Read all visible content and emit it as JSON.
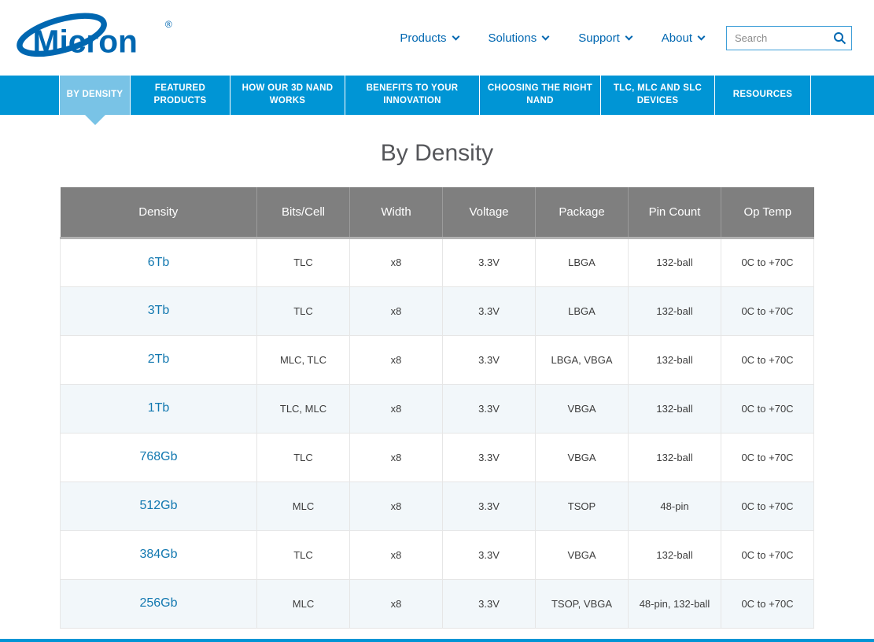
{
  "header": {
    "logo_text": "Micron",
    "logo_reg": "®",
    "nav": [
      {
        "label": "Products"
      },
      {
        "label": "Solutions"
      },
      {
        "label": "Support"
      },
      {
        "label": "About"
      }
    ],
    "search_placeholder": "Search"
  },
  "tabs": [
    {
      "label": "BY DENSITY",
      "active": true
    },
    {
      "label": "FEATURED PRODUCTS",
      "active": false
    },
    {
      "label": "HOW OUR 3D NAND WORKS",
      "active": false
    },
    {
      "label": "BENEFITS TO YOUR INNOVATION",
      "active": false
    },
    {
      "label": "CHOOSING THE RIGHT NAND",
      "active": false
    },
    {
      "label": "TLC, MLC AND SLC DEVICES",
      "active": false
    },
    {
      "label": "RESOURCES",
      "active": false
    }
  ],
  "page_title": "By Density",
  "table": {
    "columns": [
      "Density",
      "Bits/Cell",
      "Width",
      "Voltage",
      "Package",
      "Pin Count",
      "Op Temp"
    ],
    "rows": [
      [
        "6Tb",
        "TLC",
        "x8",
        "3.3V",
        "LBGA",
        "132-ball",
        "0C to +70C"
      ],
      [
        "3Tb",
        "TLC",
        "x8",
        "3.3V",
        "LBGA",
        "132-ball",
        "0C to +70C"
      ],
      [
        "2Tb",
        "MLC, TLC",
        "x8",
        "3.3V",
        "LBGA, VBGA",
        "132-ball",
        "0C to +70C"
      ],
      [
        "1Tb",
        "TLC, MLC",
        "x8",
        "3.3V",
        "VBGA",
        "132-ball",
        "0C to +70C"
      ],
      [
        "768Gb",
        "TLC",
        "x8",
        "3.3V",
        "VBGA",
        "132-ball",
        "0C to +70C"
      ],
      [
        "512Gb",
        "MLC",
        "x8",
        "3.3V",
        "TSOP",
        "48-pin",
        "0C to +70C"
      ],
      [
        "384Gb",
        "TLC",
        "x8",
        "3.3V",
        "VBGA",
        "132-ball",
        "0C to +70C"
      ],
      [
        "256Gb",
        "MLC",
        "x8",
        "3.3V",
        "TSOP, VBGA",
        "48-pin, 132-ball",
        "0C to +70C"
      ]
    ]
  },
  "colors": {
    "brand_blue": "#0067b1",
    "tab_bar_blue": "#0095d5",
    "active_tab_blue": "#79c3e6",
    "table_header_gray": "#7f7f7f",
    "row_alt_blue": "#f2f7fa",
    "link_blue": "#1278b0"
  }
}
